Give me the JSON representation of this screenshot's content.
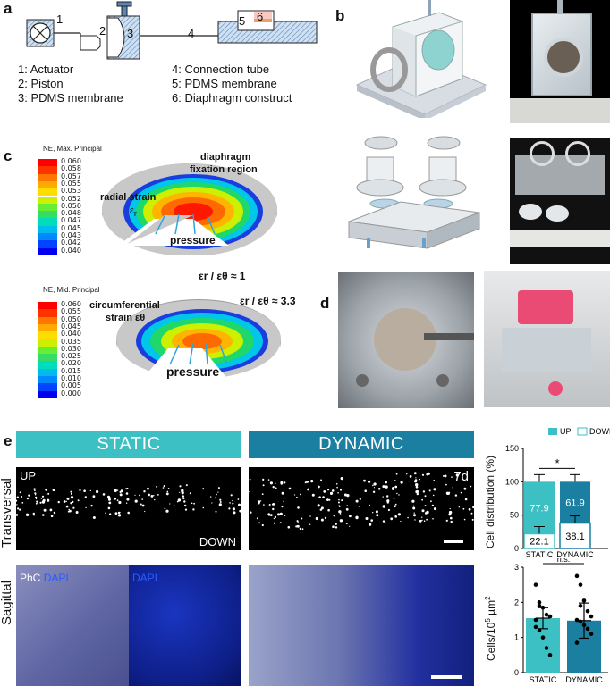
{
  "panels": {
    "a": "a",
    "b": "b",
    "c": "c",
    "d": "d",
    "e": "e"
  },
  "panel_a": {
    "numbers": [
      "1",
      "2",
      "3",
      "4",
      "5",
      "6"
    ],
    "legend_left": [
      "1: Actuator",
      "2: Piston",
      "3: PDMS membrane"
    ],
    "legend_right": [
      "4: Connection tube",
      "5: PDMS membrane",
      "6: Diaphragm construct"
    ]
  },
  "panel_c": {
    "top": {
      "title": "NE, Max. Principal",
      "scale": [
        "0.060",
        "0.058",
        "0.057",
        "0.055",
        "0.053",
        "0.052",
        "0.050",
        "0.048",
        "0.047",
        "0.045",
        "0.043",
        "0.042",
        "0.040"
      ],
      "colors": [
        "#ff0000",
        "#ff3300",
        "#ff7700",
        "#ffaa00",
        "#ffdd00",
        "#ccf000",
        "#66ee33",
        "#33dd66",
        "#00ddbb",
        "#00bbee",
        "#0088ff",
        "#0044ff",
        "#0000ee"
      ],
      "labels": {
        "fixation": "diaphragm fixation region",
        "radial": "radial strain",
        "er": "ε",
        "er_sub": "r",
        "pressure": "pressure"
      }
    },
    "bottom": {
      "title": "NE, Mid. Principal",
      "scale": [
        "0.060",
        "0.055",
        "0.050",
        "0.045",
        "0.040",
        "0.035",
        "0.030",
        "0.025",
        "0.020",
        "0.015",
        "0.010",
        "0.005",
        "0.000"
      ],
      "colors": [
        "#ff0000",
        "#ff3300",
        "#ff7700",
        "#ffaa00",
        "#ffdd00",
        "#ccf000",
        "#66ee33",
        "#33dd66",
        "#00ddbb",
        "#00bbee",
        "#0088ff",
        "#0044ff",
        "#0000ee"
      ],
      "labels": {
        "ratio1": "ε",
        "ratio1_rest": "r / εθ ≈ 1",
        "ratio2": "ε",
        "ratio2_rest": "r / εθ ≈ 3.3",
        "circ1": "circumferential",
        "circ2": "strain εθ",
        "pressure": "pressure"
      }
    }
  },
  "panel_e": {
    "static": "STATIC",
    "dynamic": "DYNAMIC",
    "row1": "Transversal",
    "row2": "Sagittal",
    "up": "UP",
    "down": "DOWN",
    "day": "7d",
    "phc": "PhC",
    "dapi": "DAPI",
    "dapi2": "DAPI"
  },
  "chart_data": [
    {
      "type": "bar",
      "categories": [
        "STATIC",
        "DYNAMIC"
      ],
      "series": [
        {
          "name": "UP",
          "values": [
            77.9,
            61.9
          ],
          "color": "#3cc0c3"
        },
        {
          "name": "DOWN",
          "values": [
            22.1,
            38.1
          ],
          "color": "#ffffff"
        }
      ],
      "labels": {
        "up_static": "77.9",
        "up_dynamic": "61.9",
        "down_static": "22.1",
        "down_dynamic": "38.1"
      },
      "ylabel": "Cell distribution (%)",
      "yticks": [
        "0",
        "50",
        "100",
        "150"
      ],
      "ylim": [
        0,
        150
      ],
      "significance": "*",
      "legend": "top-right"
    },
    {
      "type": "bar",
      "categories": [
        "STATIC",
        "DYNAMIC"
      ],
      "values": [
        1.55,
        1.48
      ],
      "errors": [
        0.3,
        0.5
      ],
      "points": {
        "STATIC": [
          2.5,
          2.0,
          1.85,
          1.65,
          1.6,
          1.5,
          1.2,
          1.0,
          0.7,
          0.5,
          1.3,
          1.9
        ],
        "DYNAMIC": [
          2.75,
          2.5,
          2.05,
          1.75,
          1.6,
          1.5,
          1.45,
          1.35,
          1.25,
          1.1,
          0.85,
          1.9
        ]
      },
      "ylabel": "Cells/10",
      "ylabel_sup": "5",
      "ylabel_unit": "µm",
      "ylabel_sup2": "2",
      "yticks": [
        "0",
        "1",
        "2",
        "3"
      ],
      "ylim": [
        0,
        3
      ],
      "significance": "n.s.",
      "colors": [
        "#3cc0c3",
        "#1a7fa0"
      ]
    }
  ]
}
